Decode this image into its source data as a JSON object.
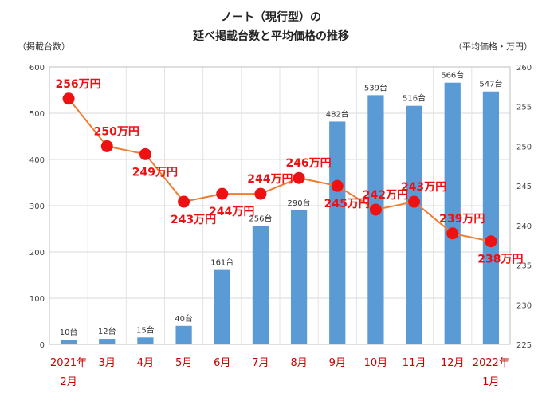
{
  "chart_data": {
    "type": "bar+line",
    "title_line1": "ノート（現行型）の",
    "title_line2": "延べ掲載台数と平均価格の推移",
    "y_left_label": "（掲載台数）",
    "y_right_label": "（平均価格・万円）",
    "y_left_ticks": [
      "0",
      "100",
      "200",
      "300",
      "400",
      "500",
      "600"
    ],
    "y_right_ticks": [
      "225",
      "230",
      "235",
      "240",
      "245",
      "250",
      "255",
      "260"
    ],
    "y_left_range": [
      0,
      600
    ],
    "y_right_range": [
      225,
      260
    ],
    "categories": [
      [
        "2021年",
        "2月"
      ],
      [
        "3月"
      ],
      [
        "4月"
      ],
      [
        "5月"
      ],
      [
        "6月"
      ],
      [
        "7月"
      ],
      [
        "8月"
      ],
      [
        "9月"
      ],
      [
        "10月"
      ],
      [
        "11月"
      ],
      [
        "12月"
      ],
      [
        "2022年",
        "1月"
      ]
    ],
    "listings": {
      "name": "延べ掲載台数",
      "values": [
        10,
        12,
        15,
        40,
        161,
        256,
        290,
        482,
        539,
        516,
        566,
        547
      ],
      "labels": [
        "10台",
        "12台",
        "15台",
        "40台",
        "161台",
        "256台",
        "290台",
        "482台",
        "539台",
        "516台",
        "566台",
        "547台"
      ],
      "color": "#5b9bd5"
    },
    "avg_price": {
      "name": "平均価格",
      "values": [
        256,
        250,
        249,
        243,
        244,
        244,
        246,
        245,
        242,
        243,
        239,
        238
      ],
      "labels": [
        "256万円",
        "250万円",
        "249万円",
        "243万円",
        "244万円",
        "244万円",
        "246万円",
        "245万円",
        "242万円",
        "243万円",
        "239万円",
        "238万円"
      ],
      "line_color": "#ed7d31",
      "marker_color": "#ee1111",
      "label_color": "#ee1111"
    },
    "category_color": "#cc0000",
    "grid": true
  }
}
